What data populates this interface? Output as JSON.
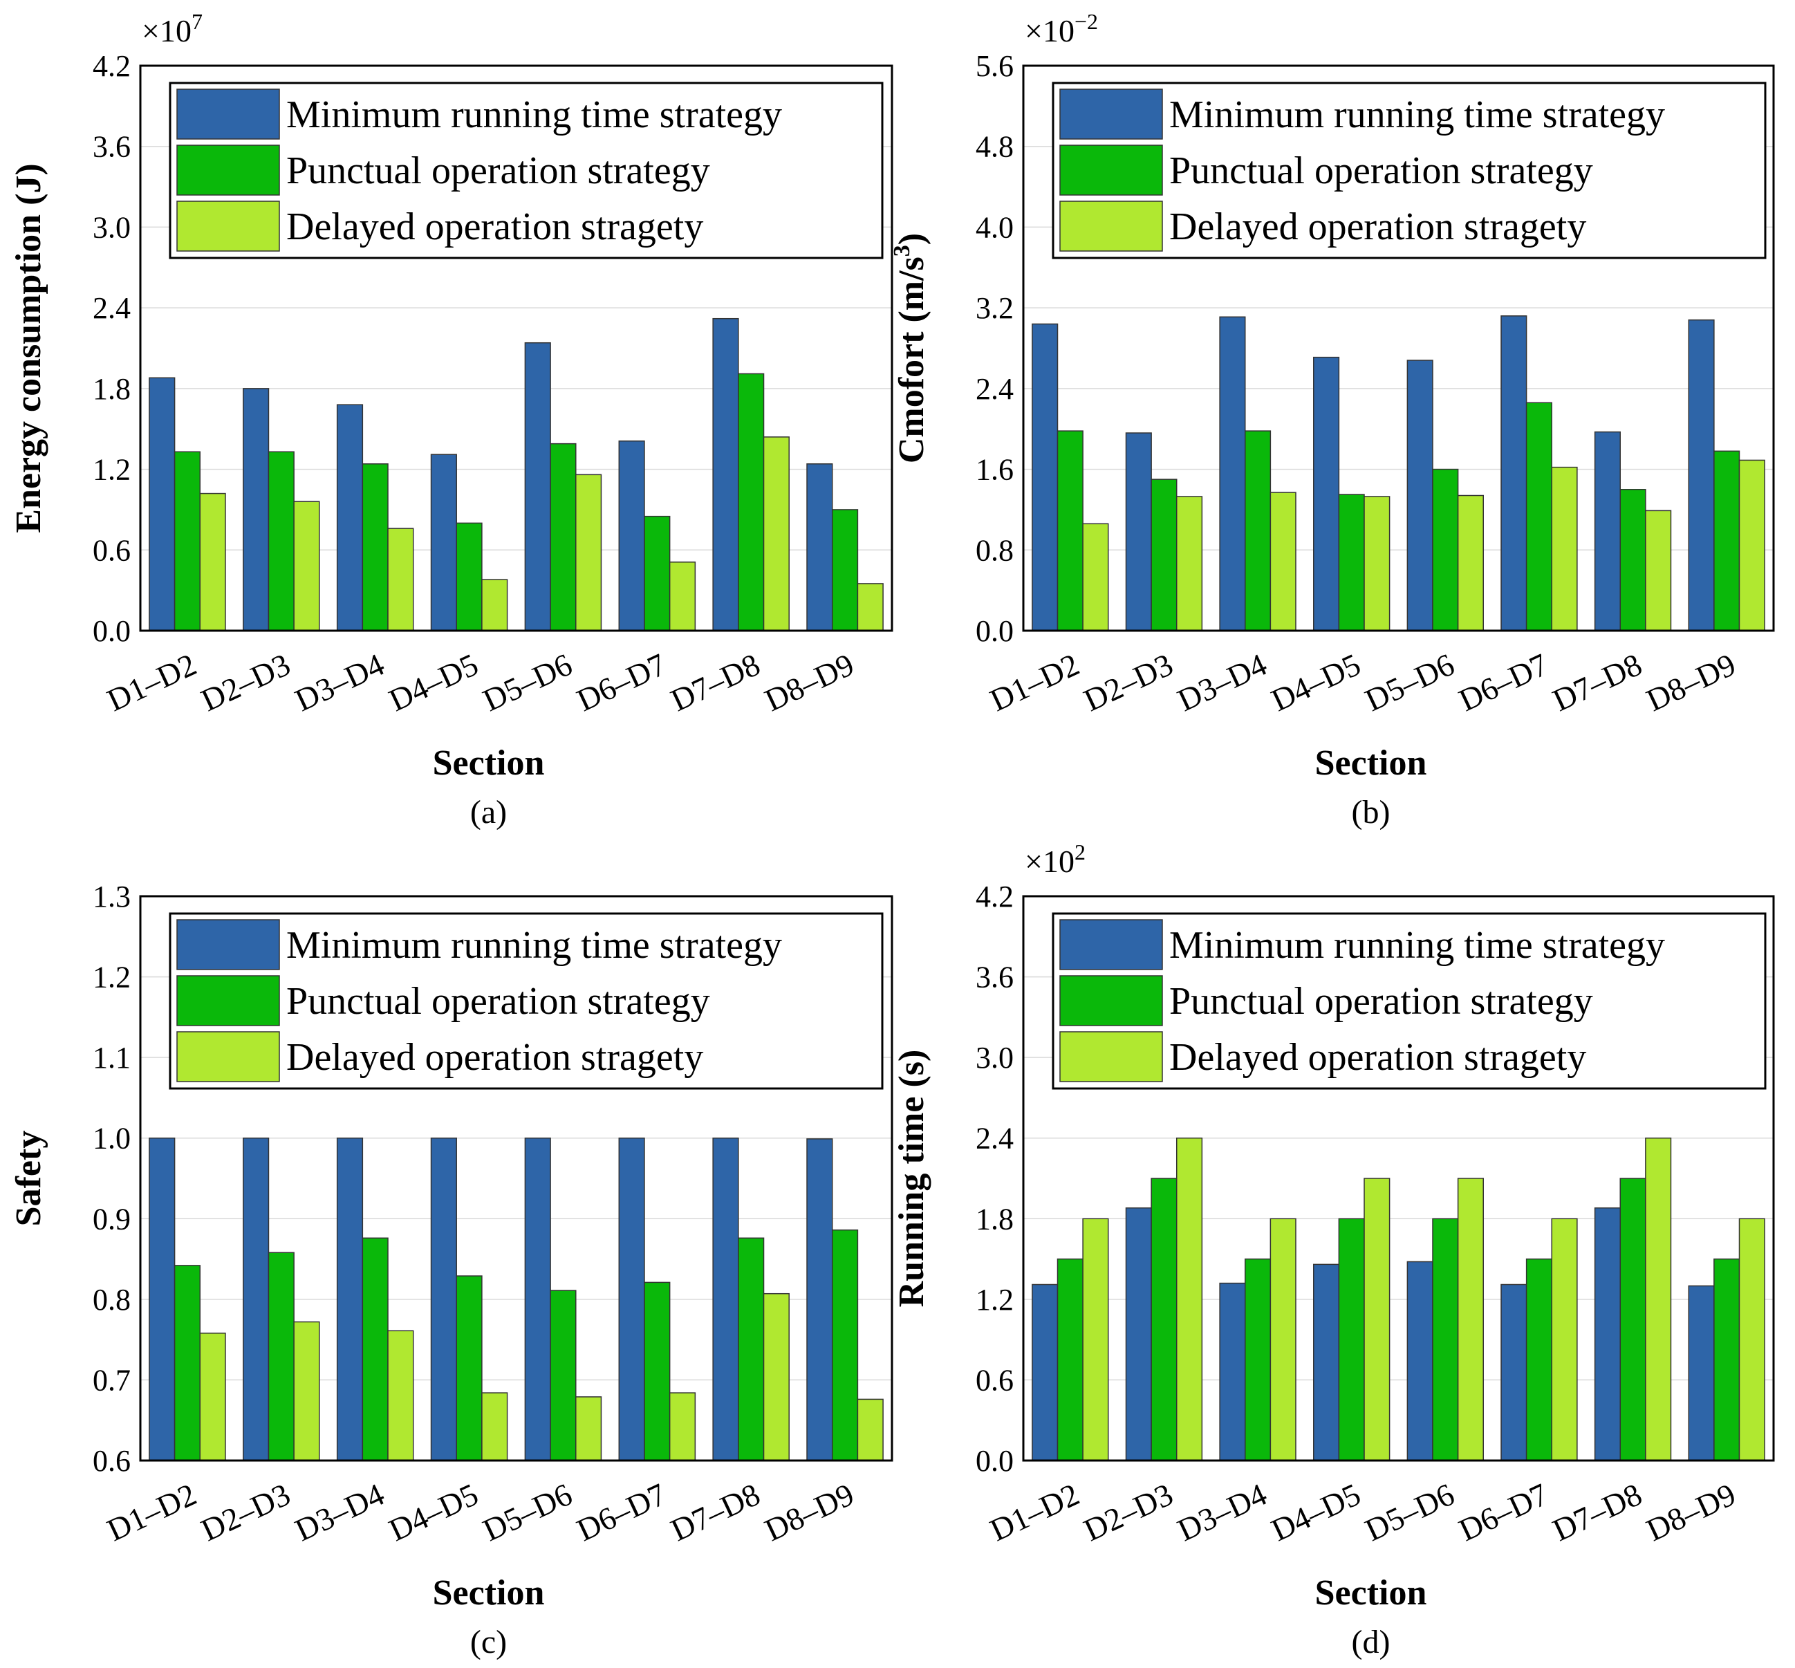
{
  "colors": {
    "Minimum running time strategy": "#2e65a8",
    "Punctual operation strategy": "#0ab80a",
    "Delayed operation stragety": "#b0e830"
  },
  "chart_data": [
    {
      "id": "a",
      "type": "bar",
      "caption": "(a)",
      "ylabel": "Energy consumption (J)",
      "multiplier_base": "×10",
      "multiplier_exp": "7",
      "xlabel": "Section",
      "ylim": [
        0,
        4.2
      ],
      "yticks": [
        "0.0",
        "0.6",
        "1.2",
        "1.8",
        "2.4",
        "3.0",
        "3.6",
        "4.2"
      ],
      "categories": [
        "D1–D2",
        "D2–D3",
        "D3–D4",
        "D4–D5",
        "D5–D6",
        "D6–D7",
        "D7–D8",
        "D8–D9"
      ],
      "series": [
        {
          "name": "Minimum running time strategy",
          "values": [
            1.88,
            1.8,
            1.68,
            1.31,
            2.14,
            1.41,
            2.32,
            1.24
          ]
        },
        {
          "name": "Punctual operation strategy",
          "values": [
            1.33,
            1.33,
            1.24,
            0.8,
            1.39,
            0.85,
            1.91,
            0.9
          ]
        },
        {
          "name": "Delayed operation stragety",
          "values": [
            1.02,
            0.96,
            0.76,
            0.38,
            1.16,
            0.51,
            1.44,
            0.35
          ]
        }
      ]
    },
    {
      "id": "b",
      "type": "bar",
      "caption": "(b)",
      "ylabel": "Cmofort (m/s",
      "ylabel_sup": "3",
      "ylabel_end": ")",
      "multiplier_base": "×10",
      "multiplier_exp": "−2",
      "xlabel": "Section",
      "ylim": [
        0,
        5.6
      ],
      "yticks": [
        "0.0",
        "0.8",
        "1.6",
        "2.4",
        "3.2",
        "4.0",
        "4.8",
        "5.6"
      ],
      "categories": [
        "D1–D2",
        "D2–D3",
        "D3–D4",
        "D4–D5",
        "D5–D6",
        "D6–D7",
        "D7–D8",
        "D8–D9"
      ],
      "series": [
        {
          "name": "Minimum running time strategy",
          "values": [
            3.04,
            1.96,
            3.11,
            2.71,
            2.68,
            3.12,
            1.97,
            3.08
          ]
        },
        {
          "name": "Punctual operation strategy",
          "values": [
            1.98,
            1.5,
            1.98,
            1.35,
            1.6,
            2.26,
            1.4,
            1.78
          ]
        },
        {
          "name": "Delayed operation stragety",
          "values": [
            1.06,
            1.33,
            1.37,
            1.33,
            1.34,
            1.62,
            1.19,
            1.69
          ]
        }
      ]
    },
    {
      "id": "c",
      "type": "bar",
      "caption": "(c)",
      "ylabel": "Safety",
      "xlabel": "Section",
      "ylim": [
        0.6,
        1.3
      ],
      "yticks": [
        "0.6",
        "0.7",
        "0.8",
        "0.9",
        "1.0",
        "1.1",
        "1.2",
        "1.3"
      ],
      "categories": [
        "D1–D2",
        "D2–D3",
        "D3–D4",
        "D4–D5",
        "D5–D6",
        "D6–D7",
        "D7–D8",
        "D8–D9"
      ],
      "series": [
        {
          "name": "Minimum running time strategy",
          "values": [
            1.0,
            1.0,
            1.0,
            1.0,
            1.0,
            1.0,
            1.0,
            0.999
          ]
        },
        {
          "name": "Punctual operation strategy",
          "values": [
            0.842,
            0.858,
            0.876,
            0.829,
            0.811,
            0.821,
            0.876,
            0.886
          ]
        },
        {
          "name": "Delayed operation stragety",
          "values": [
            0.758,
            0.772,
            0.761,
            0.684,
            0.679,
            0.684,
            0.807,
            0.676
          ]
        }
      ]
    },
    {
      "id": "d",
      "type": "bar",
      "caption": "(d)",
      "ylabel": "Running time (s)",
      "multiplier_base": "×10",
      "multiplier_exp": "2",
      "xlabel": "Section",
      "ylim": [
        0,
        4.2
      ],
      "yticks": [
        "0.0",
        "0.6",
        "1.2",
        "1.8",
        "2.4",
        "3.0",
        "3.6",
        "4.2"
      ],
      "categories": [
        "D1–D2",
        "D2–D3",
        "D3–D4",
        "D4–D5",
        "D5–D6",
        "D6–D7",
        "D7–D8",
        "D8–D9"
      ],
      "series": [
        {
          "name": "Minimum running time strategy",
          "values": [
            1.31,
            1.88,
            1.32,
            1.46,
            1.48,
            1.31,
            1.88,
            1.3
          ]
        },
        {
          "name": "Punctual operation strategy",
          "values": [
            1.5,
            2.1,
            1.5,
            1.8,
            1.8,
            1.5,
            2.1,
            1.5
          ]
        },
        {
          "name": "Delayed operation stragety",
          "values": [
            1.8,
            2.4,
            1.8,
            2.1,
            2.1,
            1.8,
            2.4,
            1.8
          ]
        }
      ]
    }
  ]
}
